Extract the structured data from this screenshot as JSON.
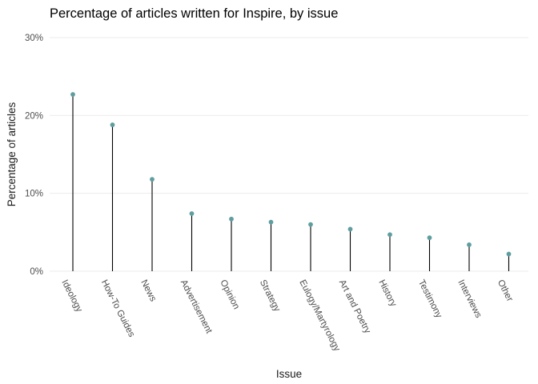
{
  "chart_data": {
    "type": "lollipop",
    "title": "Percentage of articles written for Inspire, by issue",
    "xlabel": "Issue",
    "ylabel": "Percentage of articles",
    "categories": [
      "Ideology",
      "How-To Guides",
      "News",
      "Advertisement",
      "Opinion",
      "Strategy",
      "Eulogy/Martyrology",
      "Art and Poetry",
      "History",
      "Testimony",
      "Interviews",
      "Other"
    ],
    "values": [
      22.7,
      18.8,
      11.8,
      7.4,
      6.7,
      6.3,
      6.0,
      5.4,
      4.7,
      4.3,
      3.4,
      2.2
    ],
    "y_ticks": [
      0,
      10,
      20,
      30
    ],
    "y_tick_labels": [
      "0%",
      "10%",
      "20%",
      "30%"
    ],
    "ylim": [
      0,
      30
    ],
    "grid": true,
    "point_color": "#5f9ea0",
    "stem_color": "#000000",
    "grid_color": "#ebebeb"
  }
}
